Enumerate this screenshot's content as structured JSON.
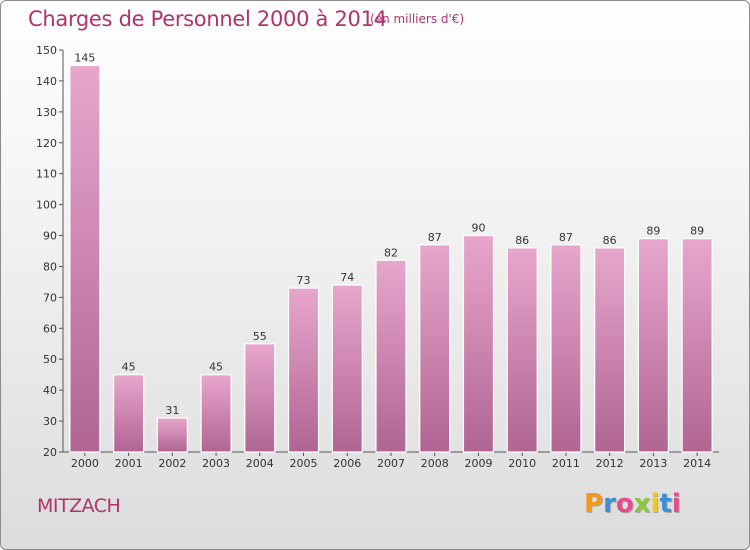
{
  "header": {
    "title": "Charges de Personnel 2000 à 2014",
    "subtitle": "(en milliers d'€)"
  },
  "footer": {
    "city": "MITZACH",
    "logo_letters": [
      "P",
      "r",
      "o",
      "x",
      "i",
      "t",
      "i"
    ],
    "logo_colors": [
      "#f29a1c",
      "#3d8fd1",
      "#e84b8a",
      "#8cc63f",
      "#f2c81c",
      "#3d8fd1",
      "#e84b8a"
    ]
  },
  "colors": {
    "bar_light": "#e8a6cc",
    "bar_dark": "#b06593",
    "text_accent": "#b0336c"
  },
  "chart_data": {
    "type": "bar",
    "categories": [
      "2000",
      "2001",
      "2002",
      "2003",
      "2004",
      "2005",
      "2006",
      "2007",
      "2008",
      "2009",
      "2010",
      "2011",
      "2012",
      "2013",
      "2014"
    ],
    "values": [
      145,
      45,
      31,
      45,
      55,
      73,
      74,
      82,
      87,
      90,
      86,
      87,
      86,
      89,
      89
    ],
    "title": "Charges de Personnel 2000 à 2014",
    "subtitle": "(en milliers d'€)",
    "ylim": [
      20,
      150
    ],
    "yticks": [
      20,
      30,
      40,
      50,
      60,
      70,
      80,
      90,
      100,
      110,
      120,
      130,
      140,
      150
    ],
    "grid": false,
    "data_labels": true
  }
}
